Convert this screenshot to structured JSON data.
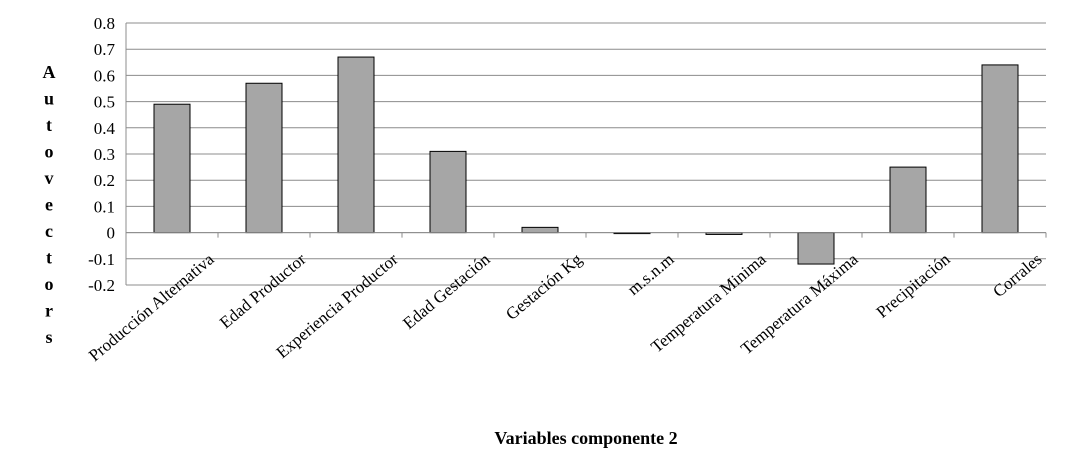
{
  "chart_data": {
    "type": "bar",
    "categories": [
      "Producción Alternativa",
      "Edad  Productor",
      "Experiencia Productor",
      "Edad Gestación",
      "Gestación Kg",
      "m.s.n.m",
      "Temperatura Minima",
      "Temperatura Máxima",
      "Precipitación",
      "Corrales"
    ],
    "values": [
      0.49,
      0.57,
      0.67,
      0.31,
      0.02,
      -0.003,
      -0.007,
      -0.12,
      0.25,
      0.64
    ],
    "xlabel": "Variables componente 2",
    "ylabel": "Autovectors",
    "ylim": [
      -0.2,
      0.8
    ],
    "yticks": [
      "0.8",
      "0.7",
      "0.6",
      "0.5",
      "0.4",
      "0.3",
      "0.2",
      "0.1",
      "0",
      "-0.1",
      "-0.2"
    ],
    "grid": true,
    "colors": {
      "bar": "#a6a6a6",
      "bar_stroke": "#000000",
      "grid": "#8c8c8c",
      "axis": "#8c8c8c"
    }
  }
}
